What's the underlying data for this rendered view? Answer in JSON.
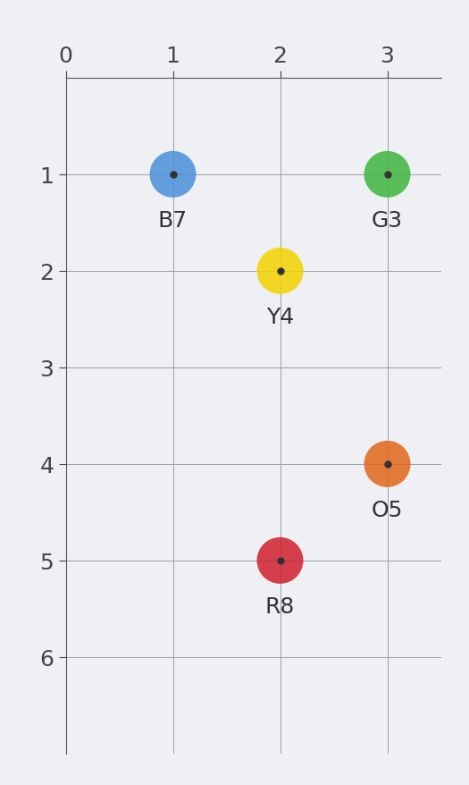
{
  "chart_data": {
    "type": "scatter",
    "x": [
      1,
      3,
      2,
      3,
      2
    ],
    "y": [
      1,
      1,
      2,
      4,
      5
    ],
    "labels": [
      "B7",
      "G3",
      "Y4",
      "O5",
      "R8"
    ],
    "colors": [
      "#4a90d9",
      "#3fb63f",
      "#f2d200",
      "#e0661a",
      "#d0202e"
    ],
    "xlim": [
      0,
      3.5
    ],
    "xticks": [
      0,
      1,
      2,
      3
    ],
    "ylim": [
      7,
      0
    ],
    "yticks": [
      1,
      2,
      3,
      4,
      5,
      6
    ],
    "grid": true
  }
}
